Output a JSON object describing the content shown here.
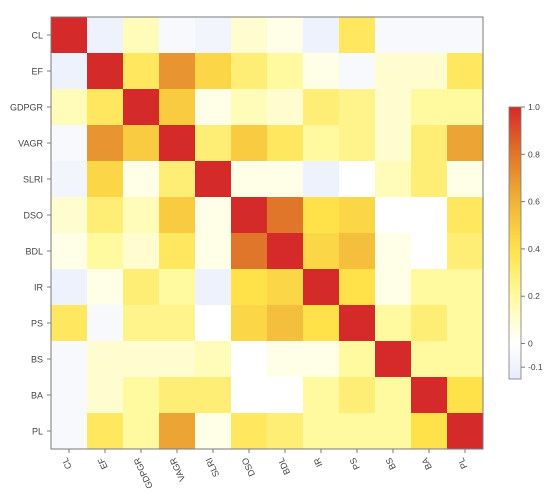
{
  "chart_data": {
    "type": "heatmap",
    "title": "",
    "xlabel": "",
    "ylabel": "",
    "labels": [
      "CL",
      "EF",
      "GDPGR",
      "VAGR",
      "SLRI",
      "DSO",
      "BDL",
      "IR",
      "PS",
      "BS",
      "BA",
      "PL"
    ],
    "matrix": [
      [
        1.0,
        -0.1,
        0.15,
        -0.05,
        -0.08,
        0.1,
        0.05,
        -0.1,
        0.35,
        -0.05,
        -0.05,
        -0.05
      ],
      [
        -0.1,
        1.0,
        0.35,
        0.7,
        0.45,
        0.3,
        0.2,
        0.05,
        -0.05,
        0.1,
        0.1,
        0.35
      ],
      [
        0.15,
        0.35,
        1.0,
        0.5,
        0.05,
        0.15,
        0.1,
        0.3,
        0.25,
        0.1,
        0.2,
        0.2
      ],
      [
        -0.05,
        0.7,
        0.5,
        1.0,
        0.3,
        0.5,
        0.35,
        0.2,
        0.25,
        0.1,
        0.3,
        0.65
      ],
      [
        -0.08,
        0.45,
        0.05,
        0.3,
        1.0,
        0.05,
        0.05,
        -0.1,
        0.0,
        0.15,
        0.3,
        0.05
      ],
      [
        0.1,
        0.3,
        0.15,
        0.5,
        0.05,
        1.0,
        0.8,
        0.4,
        0.45,
        0.0,
        0.0,
        0.35
      ],
      [
        0.05,
        0.2,
        0.1,
        0.35,
        0.05,
        0.8,
        1.0,
        0.45,
        0.55,
        0.05,
        0.0,
        0.3
      ],
      [
        -0.1,
        0.05,
        0.3,
        0.2,
        -0.1,
        0.4,
        0.45,
        1.0,
        0.4,
        0.05,
        0.2,
        0.2
      ],
      [
        0.35,
        -0.05,
        0.25,
        0.25,
        0.0,
        0.45,
        0.55,
        0.4,
        1.0,
        0.2,
        0.3,
        0.2
      ],
      [
        -0.05,
        0.1,
        0.1,
        0.1,
        0.15,
        0.0,
        0.05,
        0.05,
        0.2,
        1.0,
        0.2,
        0.2
      ],
      [
        -0.05,
        0.1,
        0.2,
        0.3,
        0.3,
        0.0,
        0.0,
        0.2,
        0.3,
        0.2,
        1.0,
        0.4
      ],
      [
        -0.05,
        0.35,
        0.2,
        0.65,
        0.05,
        0.35,
        0.3,
        0.2,
        0.2,
        0.2,
        0.4,
        1.0
      ]
    ],
    "colorbar": {
      "min": -0.15,
      "max": 1.0,
      "ticks": [
        -0.1,
        0,
        0.2,
        0.4,
        0.6,
        0.8,
        1.0
      ],
      "tick_labels": [
        "-0.1",
        "0",
        "0.2",
        "0.4",
        "0.6",
        "0.8",
        "1.0"
      ]
    },
    "colors": {
      "low": "#e6ecfa",
      "zero": "#ffffff",
      "mid_low": "#fffaa0",
      "mid": "#ffe24a",
      "mid_high": "#f0b338",
      "high_mid": "#e0762a",
      "high": "#d42a2a",
      "frame": "#7a7a7a",
      "tick_text": "#444444"
    }
  }
}
